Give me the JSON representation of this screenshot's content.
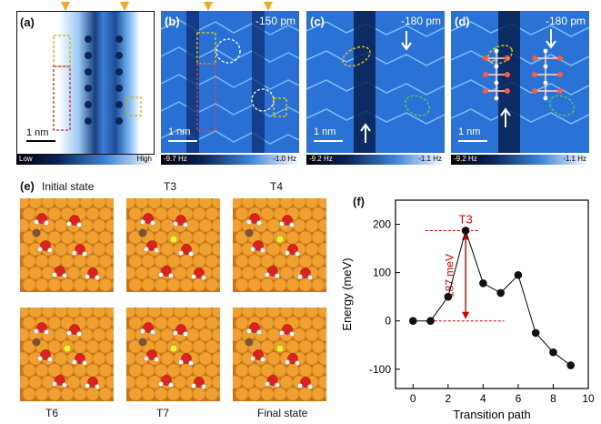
{
  "stm_panels": [
    {
      "tag": "(a)",
      "bias": "",
      "scale": "1 nm",
      "cb_low": "Low",
      "cb_high": "High"
    },
    {
      "tag": "(b)",
      "bias": "-150 pm",
      "scale": "1 nm",
      "cb_low": "-9.7 Hz",
      "cb_high": "-1.0 Hz"
    },
    {
      "tag": "(c)",
      "bias": "-180 pm",
      "scale": "1 nm",
      "cb_low": "-9.2 Hz",
      "cb_high": "-1.1 Hz"
    },
    {
      "tag": "(d)",
      "bias": "-180 pm",
      "scale": "1 nm",
      "cb_low": "-9.2 Hz",
      "cb_high": "-1.1 Hz"
    }
  ],
  "panel_e": {
    "tag": "(e)",
    "labels_top": [
      "Initial state",
      "T3",
      "T4"
    ],
    "labels_bottom": [
      "T6",
      "T7",
      "Final state"
    ]
  },
  "chart_data": {
    "type": "scatter",
    "tag": "(f)",
    "x": [
      0,
      1,
      2,
      3,
      4,
      5,
      6,
      7,
      8,
      9
    ],
    "y": [
      0,
      0,
      50,
      187,
      78,
      58,
      95,
      -25,
      -65,
      -92
    ],
    "xlabel": "Transition path",
    "ylabel": "Energy (meV)",
    "xlim": [
      -1,
      10
    ],
    "ylim": [
      -140,
      250
    ],
    "xticks": [
      0,
      2,
      4,
      6,
      8,
      10
    ],
    "yticks": [
      -100,
      0,
      100,
      200
    ],
    "annotation_peak": "T3",
    "annotation_barrier": "187 meV",
    "line_color": "#000000",
    "annotation_color": "#d40000"
  },
  "colors": {
    "stm_dark": "#06143a",
    "stm_mid": "#2f6fd0",
    "stm_light": "#e6f2ff",
    "gold": "#e89a22",
    "oxygen": "#e02020",
    "hydrogen": "#ffffff",
    "carbon": "#7a5535",
    "accent_arrow": "#f5a623"
  }
}
